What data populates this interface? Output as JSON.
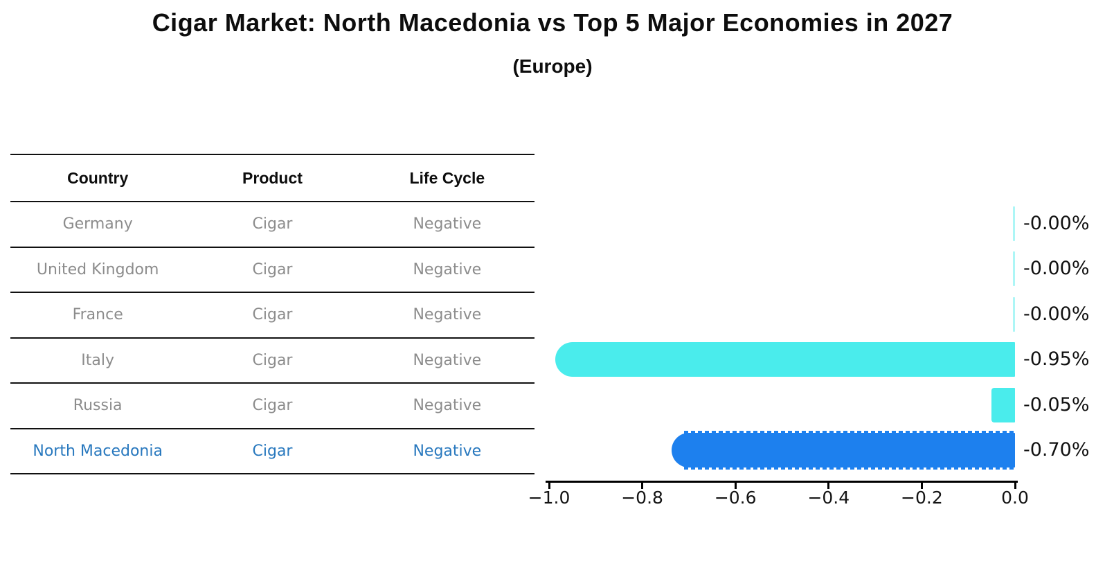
{
  "title": "Cigar Market: North Macedonia vs Top 5 Major Economies in 2027",
  "subtitle": "(Europe)",
  "table": {
    "headers": [
      "Country",
      "Product",
      "Life Cycle"
    ],
    "rows": [
      {
        "country": "Germany",
        "product": "Cigar",
        "life_cycle": "Negative",
        "highlight": false
      },
      {
        "country": "United Kingdom",
        "product": "Cigar",
        "life_cycle": "Negative",
        "highlight": false
      },
      {
        "country": "France",
        "product": "Cigar",
        "life_cycle": "Negative",
        "highlight": false
      },
      {
        "country": "Italy",
        "product": "Cigar",
        "life_cycle": "Negative",
        "highlight": false
      },
      {
        "country": "Russia",
        "product": "Cigar",
        "life_cycle": "Negative",
        "highlight": false
      },
      {
        "country": "North Macedonia",
        "product": "Cigar",
        "life_cycle": "Negative",
        "highlight": true
      }
    ]
  },
  "chart_data": {
    "type": "bar",
    "orientation": "horizontal",
    "title": "Cigar Market: North Macedonia vs Top 5 Major Economies in 2027",
    "subtitle": "(Europe)",
    "categories": [
      "Germany",
      "United Kingdom",
      "France",
      "Italy",
      "Russia",
      "North Macedonia"
    ],
    "values": [
      -0.0,
      -0.0,
      -0.0,
      -0.95,
      -0.05,
      -0.7
    ],
    "value_labels": [
      "-0.00%",
      "-0.00%",
      "-0.00%",
      "-0.95%",
      "-0.05%",
      "-0.70%"
    ],
    "unit": "%",
    "xlim": [
      -1.0,
      0.0
    ],
    "x_tick_labels": [
      "−1.0",
      "−0.8",
      "−0.6",
      "−0.4",
      "−0.2",
      "0.0"
    ],
    "grid": false,
    "legend": false,
    "highlight_category": "North Macedonia"
  },
  "colors": {
    "bar_default": "#4aecec",
    "bar_default_faint": "rgba(74,236,236,0.45)",
    "bar_highlight": "#1d80ee",
    "highlight_text": "#2878be",
    "row_text": "#8c8c8c",
    "header_text": "#0d0d0d",
    "axis": "#000000"
  }
}
